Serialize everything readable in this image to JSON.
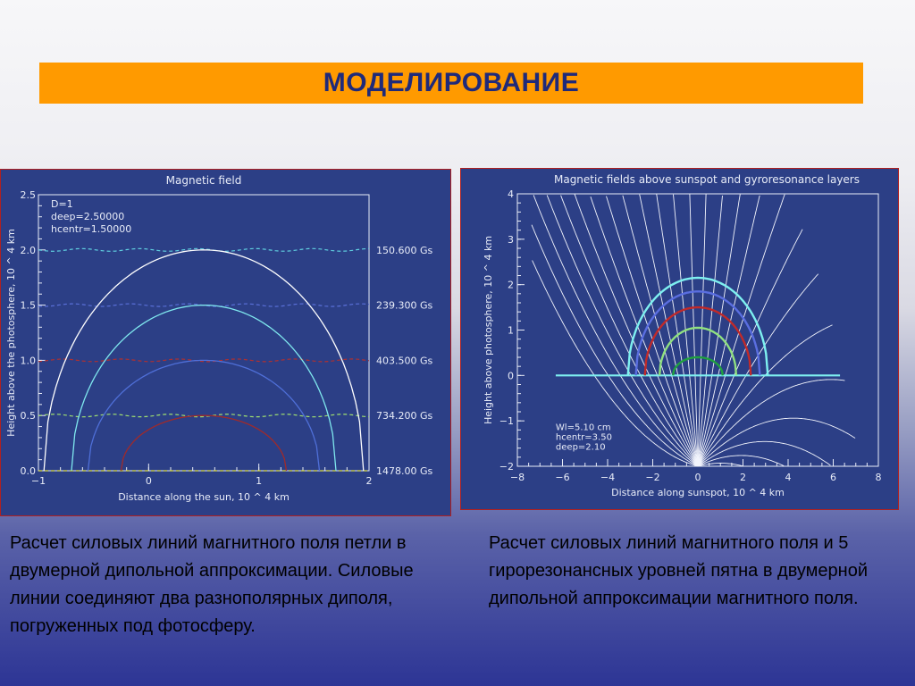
{
  "slide": {
    "title": "МОДЕЛИРОВАНИЕ",
    "caption_left": "Расчет силовых линий магнитного поля петли в двумерной дипольной аппроксимации. Силовые линии соединяют два разнополярных диполя, погруженных под фотосферу.",
    "caption_right": "Расчет силовых линий магнитного поля и 5 гирорезонансных уровней пятна в двумерной дипольной аппроксимации магнитного поля."
  },
  "colors": {
    "title_bar": "#ff9a00",
    "title_text": "#1f2a7a",
    "panel_bg": "#2c3f86",
    "panel_border": "#b02020"
  },
  "chart_data": [
    {
      "type": "line",
      "title": "Magnetic field",
      "xlabel": "Distance along the sun, 10 ^ 4 km",
      "ylabel": "Height above the photosphere, 10 ^ 4 km",
      "xlim": [
        -1,
        2
      ],
      "ylim": [
        0,
        2.5
      ],
      "xticks": [
        -1,
        0,
        1,
        2
      ],
      "yticks": [
        0.0,
        0.5,
        1.0,
        1.5,
        2.0,
        2.5
      ],
      "xtick_labels": [
        "−1",
        "0",
        "1",
        "2"
      ],
      "ytick_labels": [
        "0.0",
        "0.5",
        "1.0",
        "1.5",
        "2.0",
        "2.5"
      ],
      "annotations": [
        "D=1",
        "deep=2.50000",
        "hcentr=1.50000"
      ],
      "field_lines": [
        {
          "color": "#ffffff",
          "x_start": -0.95,
          "x_end": 1.95,
          "peak_height": 2.0
        },
        {
          "color": "#7fe8ee",
          "x_start": -0.7,
          "x_end": 1.7,
          "peak_height": 1.5
        },
        {
          "color": "#4f6fd8",
          "x_start": -0.55,
          "x_end": 1.55,
          "peak_height": 1.0
        },
        {
          "color": "#a02a2a",
          "x_start": -0.25,
          "x_end": 1.25,
          "peak_height": 0.5
        }
      ],
      "level_lines": [
        {
          "color": "#60d0e0",
          "height": 2.0,
          "label": "150.600 Gs"
        },
        {
          "color": "#5a70d8",
          "height": 1.5,
          "label": "239.300 Gs"
        },
        {
          "color": "#b03030",
          "height": 1.0,
          "label": "403.500 Gs"
        },
        {
          "color": "#a0e070",
          "height": 0.5,
          "label": "734.200 Gs"
        },
        {
          "color": "#e0e040",
          "height": 0.0,
          "label": "1478.00 Gs"
        }
      ]
    },
    {
      "type": "line",
      "title": "Magnetic fields above sunspot and gyroresonance layers",
      "xlabel": "Distance along sunspot, 10 ^ 4 km",
      "ylabel": "Height above photosphere, 10 ^ 4 km",
      "xlim": [
        -8,
        8
      ],
      "ylim": [
        -2,
        4
      ],
      "xticks": [
        -8,
        -6,
        -4,
        -2,
        0,
        2,
        4,
        6,
        8
      ],
      "yticks": [
        -2,
        -1,
        0,
        1,
        2,
        3,
        4
      ],
      "xtick_labels": [
        "−8",
        "−6",
        "−4",
        "−2",
        "0",
        "2",
        "4",
        "6",
        "8"
      ],
      "ytick_labels": [
        "−2",
        "−1",
        "0",
        "1",
        "2",
        "3",
        "4"
      ],
      "annotations": [
        "Wl=5.10 cm",
        "hcentr=3.50",
        "deep=2.10"
      ],
      "gyro_levels": [
        {
          "color": "#7ef0f0",
          "half_width": 3.1,
          "peak_height": 2.15
        },
        {
          "color": "#5a6ee0",
          "half_width": 2.75,
          "peak_height": 1.85
        },
        {
          "color": "#c02a2a",
          "half_width": 2.35,
          "peak_height": 1.5
        },
        {
          "color": "#90e080",
          "half_width": 1.7,
          "peak_height": 1.05
        },
        {
          "color": "#20a040",
          "half_width": 1.1,
          "peak_height": 0.4
        }
      ],
      "baseline": {
        "x_start": -6.3,
        "x_end": 6.3,
        "height": 0
      }
    }
  ]
}
